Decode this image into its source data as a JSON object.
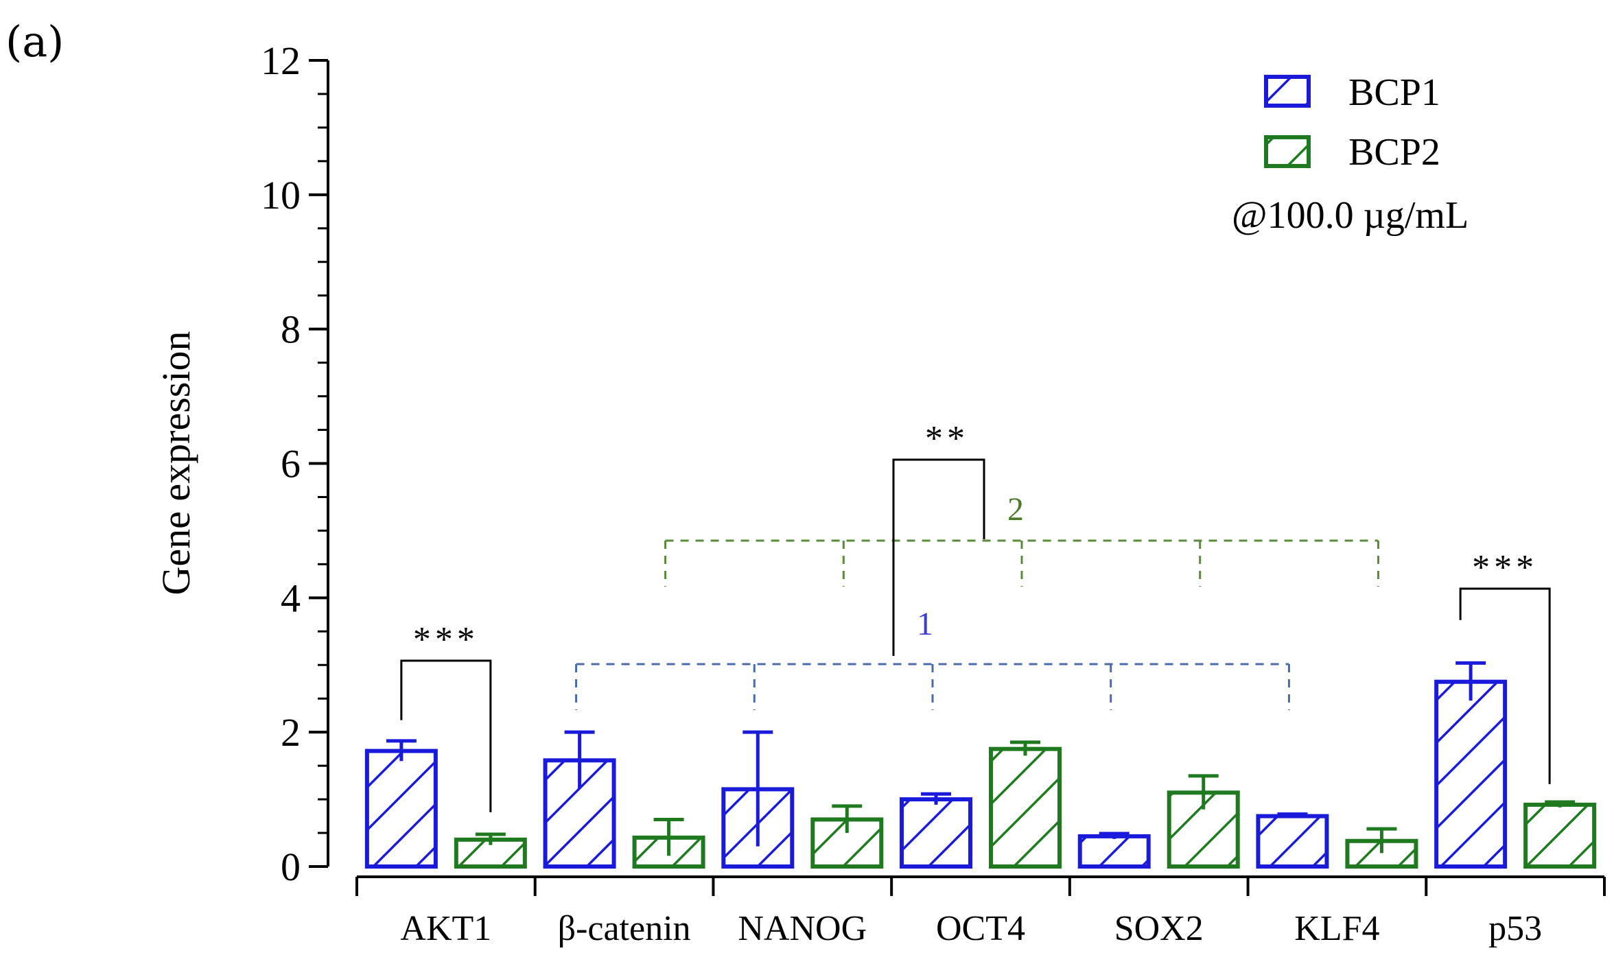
{
  "panel_label": "(a)",
  "colors": {
    "BCP1": "#1a1adb",
    "BCP2": "#1f7a1f",
    "group1_line": "#4a6aa8",
    "group2_line": "#5a8a3a",
    "sig_line": "#000000"
  },
  "legend": {
    "items": [
      "BCP1",
      "BCP2"
    ],
    "note": "@100.0 µg/mL"
  },
  "groups": [
    {
      "label": "1",
      "color": "#3a3adb"
    },
    {
      "label": "2",
      "color": "#4a7a2a"
    }
  ],
  "significance": [
    {
      "label": "***"
    },
    {
      "label": "**"
    },
    {
      "label": "***"
    }
  ],
  "chart_data": {
    "type": "bar",
    "title": "",
    "xlabel": "",
    "ylabel": "Gene expression",
    "ylim": [
      0,
      12
    ],
    "yticks": [
      "0",
      "2",
      "4",
      "6",
      "8",
      "10",
      "12"
    ],
    "categories": [
      "AKT1",
      "β-catenin",
      "NANOG",
      "OCT4",
      "SOX2",
      "KLF4",
      "p53"
    ],
    "series": [
      {
        "name": "BCP1",
        "values": [
          1.72,
          1.58,
          1.15,
          1.0,
          0.45,
          0.75,
          2.75
        ],
        "errors": [
          0.15,
          0.42,
          0.85,
          0.08,
          0.04,
          0.03,
          0.28
        ]
      },
      {
        "name": "BCP2",
        "values": [
          0.4,
          0.43,
          0.7,
          1.75,
          1.1,
          0.38,
          0.92
        ],
        "errors": [
          0.08,
          0.27,
          0.2,
          0.1,
          0.25,
          0.18,
          0.04
        ]
      }
    ],
    "grid": false,
    "legend_position": "top-right"
  }
}
